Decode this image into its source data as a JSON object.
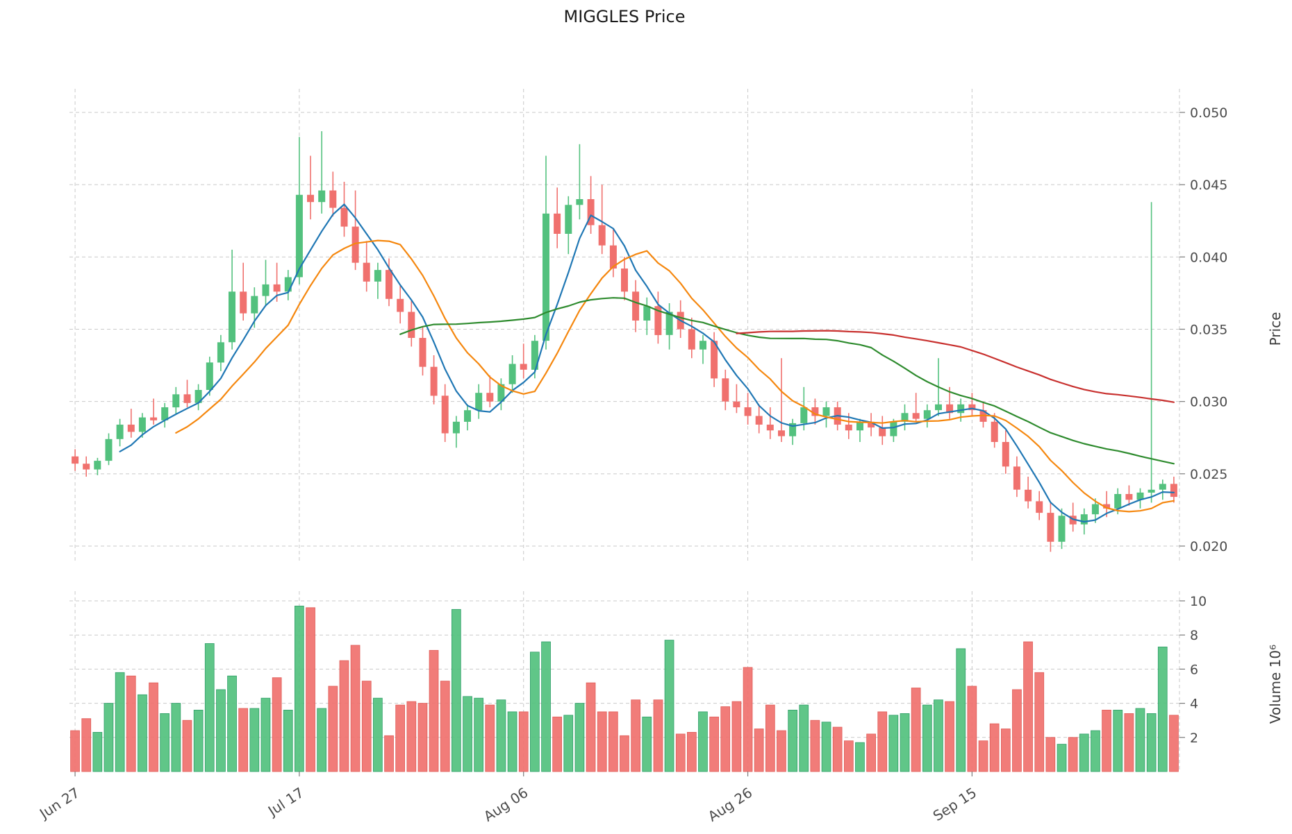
{
  "colors": {
    "up": "#53c17e",
    "down": "#f0716e",
    "up_edge": "#2e9e68",
    "down_edge": "#e05c58",
    "grid": "#c9c9c9",
    "tick_mark": "#7a7a7a",
    "tick_label": "#4b4b4b",
    "title_text": "#1a1a1a",
    "background": "#ffffff"
  },
  "chart_data": {
    "type": "candlestick",
    "title": "MIGGLES Price",
    "grid": "dashed",
    "price_axis": {
      "label": "Price",
      "side": "right",
      "ticks": [
        "0.020",
        "0.025",
        "0.030",
        "0.035",
        "0.040",
        "0.045",
        "0.050"
      ]
    },
    "volume_axis": {
      "label": "Volume",
      "scale": "10⁶",
      "label_display": "Volume  10⁶",
      "side": "right",
      "ticks": [
        "2",
        "4",
        "6",
        "8",
        "10"
      ]
    },
    "x_ticks": [
      {
        "index": 0,
        "label": "Jun 27"
      },
      {
        "index": 20,
        "label": "Jul 17"
      },
      {
        "index": 40,
        "label": "Aug 06"
      },
      {
        "index": 60,
        "label": "Aug 26"
      },
      {
        "index": 80,
        "label": "Sep 15"
      }
    ],
    "moving_averages": [
      {
        "name": "MA5",
        "window": 5,
        "color": "#1f77b4"
      },
      {
        "name": "MA10",
        "window": 10,
        "color": "#f5870e"
      },
      {
        "name": "MA30",
        "window": 30,
        "color": "#2e8b2e"
      },
      {
        "name": "MA60",
        "window": 60,
        "color": "#c8302e"
      }
    ],
    "ohlcv_columns": [
      "open",
      "high",
      "low",
      "close",
      "volume_millions"
    ],
    "ohlcv": [
      [
        0.0262,
        0.0267,
        0.0252,
        0.0257,
        2.4
      ],
      [
        0.0257,
        0.0262,
        0.0248,
        0.0253,
        3.1
      ],
      [
        0.0253,
        0.0261,
        0.0249,
        0.0259,
        2.3
      ],
      [
        0.0259,
        0.0278,
        0.0256,
        0.0274,
        4.0
      ],
      [
        0.0274,
        0.0288,
        0.0269,
        0.0284,
        5.8
      ],
      [
        0.0284,
        0.0295,
        0.0275,
        0.0279,
        5.6
      ],
      [
        0.0279,
        0.0292,
        0.0275,
        0.0289,
        4.5
      ],
      [
        0.0289,
        0.0302,
        0.0284,
        0.0287,
        5.2
      ],
      [
        0.0287,
        0.0299,
        0.0282,
        0.0296,
        3.4
      ],
      [
        0.0296,
        0.031,
        0.0291,
        0.0305,
        4.0
      ],
      [
        0.0305,
        0.0315,
        0.0296,
        0.0299,
        3.0
      ],
      [
        0.0299,
        0.0312,
        0.0294,
        0.0308,
        3.6
      ],
      [
        0.0308,
        0.0331,
        0.0304,
        0.0327,
        7.5
      ],
      [
        0.0327,
        0.0346,
        0.0321,
        0.0341,
        4.8
      ],
      [
        0.0341,
        0.0405,
        0.0336,
        0.0376,
        5.6
      ],
      [
        0.0376,
        0.0396,
        0.0356,
        0.0361,
        3.7
      ],
      [
        0.0361,
        0.0379,
        0.0351,
        0.0373,
        3.7
      ],
      [
        0.0373,
        0.0398,
        0.0366,
        0.0381,
        4.3
      ],
      [
        0.0381,
        0.0396,
        0.0369,
        0.0376,
        5.5
      ],
      [
        0.0376,
        0.0391,
        0.037,
        0.0386,
        3.6
      ],
      [
        0.0386,
        0.0483,
        0.0381,
        0.0443,
        9.7
      ],
      [
        0.0443,
        0.047,
        0.0426,
        0.0438,
        9.6
      ],
      [
        0.0438,
        0.0487,
        0.043,
        0.0446,
        3.7
      ],
      [
        0.0446,
        0.0459,
        0.0428,
        0.0434,
        5.0
      ],
      [
        0.0434,
        0.0452,
        0.0414,
        0.0421,
        6.5
      ],
      [
        0.0421,
        0.0446,
        0.0391,
        0.0396,
        7.4
      ],
      [
        0.0396,
        0.0411,
        0.0376,
        0.0383,
        5.3
      ],
      [
        0.0383,
        0.0396,
        0.0371,
        0.0391,
        4.3
      ],
      [
        0.0391,
        0.0399,
        0.0366,
        0.0371,
        2.1
      ],
      [
        0.0371,
        0.0381,
        0.0354,
        0.0362,
        3.9
      ],
      [
        0.0362,
        0.037,
        0.0338,
        0.0344,
        4.1
      ],
      [
        0.0344,
        0.0352,
        0.0318,
        0.0324,
        4.0
      ],
      [
        0.0324,
        0.0332,
        0.0298,
        0.0304,
        7.1
      ],
      [
        0.0304,
        0.0312,
        0.0272,
        0.0278,
        5.3
      ],
      [
        0.0278,
        0.029,
        0.0268,
        0.0286,
        9.5
      ],
      [
        0.0286,
        0.0298,
        0.028,
        0.0294,
        4.4
      ],
      [
        0.0294,
        0.0312,
        0.0288,
        0.0306,
        4.3
      ],
      [
        0.0306,
        0.0318,
        0.0296,
        0.03,
        3.9
      ],
      [
        0.03,
        0.0316,
        0.0294,
        0.0312,
        4.2
      ],
      [
        0.0312,
        0.0332,
        0.0306,
        0.0326,
        3.5
      ],
      [
        0.0326,
        0.034,
        0.0316,
        0.0322,
        3.5
      ],
      [
        0.0322,
        0.0346,
        0.0316,
        0.0342,
        7.0
      ],
      [
        0.0342,
        0.047,
        0.0336,
        0.043,
        7.6
      ],
      [
        0.043,
        0.0448,
        0.0406,
        0.0416,
        3.2
      ],
      [
        0.0416,
        0.0442,
        0.0402,
        0.0436,
        3.3
      ],
      [
        0.0436,
        0.0478,
        0.0426,
        0.044,
        4.0
      ],
      [
        0.044,
        0.0456,
        0.0416,
        0.0422,
        5.2
      ],
      [
        0.0422,
        0.045,
        0.0402,
        0.0408,
        3.5
      ],
      [
        0.0408,
        0.042,
        0.0386,
        0.0392,
        3.5
      ],
      [
        0.0392,
        0.04,
        0.037,
        0.0376,
        2.1
      ],
      [
        0.0376,
        0.0384,
        0.0348,
        0.0356,
        4.2
      ],
      [
        0.0356,
        0.0372,
        0.0346,
        0.0366,
        3.2
      ],
      [
        0.0366,
        0.0376,
        0.034,
        0.0346,
        4.2
      ],
      [
        0.0346,
        0.0368,
        0.0336,
        0.0362,
        7.7
      ],
      [
        0.0362,
        0.037,
        0.0344,
        0.035,
        2.2
      ],
      [
        0.035,
        0.0358,
        0.033,
        0.0336,
        2.3
      ],
      [
        0.0336,
        0.0346,
        0.0326,
        0.0342,
        3.5
      ],
      [
        0.0342,
        0.0348,
        0.031,
        0.0316,
        3.2
      ],
      [
        0.0316,
        0.0322,
        0.0294,
        0.03,
        3.8
      ],
      [
        0.03,
        0.0312,
        0.0292,
        0.0296,
        4.1
      ],
      [
        0.0296,
        0.0306,
        0.0284,
        0.029,
        6.1
      ],
      [
        0.029,
        0.0298,
        0.0278,
        0.0284,
        2.5
      ],
      [
        0.0284,
        0.0296,
        0.0274,
        0.028,
        3.9
      ],
      [
        0.028,
        0.033,
        0.0272,
        0.0276,
        2.4
      ],
      [
        0.0276,
        0.0288,
        0.027,
        0.0285,
        3.6
      ],
      [
        0.0285,
        0.031,
        0.028,
        0.0296,
        3.9
      ],
      [
        0.0296,
        0.0302,
        0.0284,
        0.029,
        3.0
      ],
      [
        0.029,
        0.03,
        0.0282,
        0.0296,
        2.9
      ],
      [
        0.0296,
        0.03,
        0.028,
        0.0284,
        2.6
      ],
      [
        0.0284,
        0.0292,
        0.0274,
        0.028,
        1.8
      ],
      [
        0.028,
        0.0288,
        0.0272,
        0.0286,
        1.7
      ],
      [
        0.0286,
        0.0292,
        0.0276,
        0.0282,
        2.2
      ],
      [
        0.0282,
        0.029,
        0.027,
        0.0276,
        3.5
      ],
      [
        0.0276,
        0.0288,
        0.0272,
        0.0286,
        3.3
      ],
      [
        0.0286,
        0.0298,
        0.028,
        0.0292,
        3.4
      ],
      [
        0.0292,
        0.0306,
        0.0286,
        0.0288,
        4.9
      ],
      [
        0.0288,
        0.0298,
        0.0282,
        0.0294,
        3.9
      ],
      [
        0.0294,
        0.033,
        0.029,
        0.0298,
        4.2
      ],
      [
        0.0298,
        0.031,
        0.0288,
        0.0292,
        4.1
      ],
      [
        0.0292,
        0.0302,
        0.0286,
        0.0298,
        7.2
      ],
      [
        0.0298,
        0.0306,
        0.029,
        0.0294,
        5.0
      ],
      [
        0.0294,
        0.03,
        0.0282,
        0.0286,
        1.8
      ],
      [
        0.0286,
        0.0292,
        0.0268,
        0.0272,
        2.8
      ],
      [
        0.0272,
        0.028,
        0.025,
        0.0255,
        2.5
      ],
      [
        0.0255,
        0.0262,
        0.0234,
        0.0239,
        4.8
      ],
      [
        0.0239,
        0.0248,
        0.0226,
        0.0231,
        7.6
      ],
      [
        0.0231,
        0.0238,
        0.0218,
        0.0223,
        5.8
      ],
      [
        0.0223,
        0.023,
        0.0196,
        0.0203,
        2.0
      ],
      [
        0.0203,
        0.0226,
        0.0198,
        0.0221,
        1.6
      ],
      [
        0.0221,
        0.023,
        0.021,
        0.0215,
        2.0
      ],
      [
        0.0215,
        0.0226,
        0.0208,
        0.0222,
        2.2
      ],
      [
        0.0222,
        0.0233,
        0.0216,
        0.0229,
        2.4
      ],
      [
        0.0229,
        0.0238,
        0.022,
        0.0226,
        3.6
      ],
      [
        0.0226,
        0.024,
        0.0222,
        0.0236,
        3.6
      ],
      [
        0.0236,
        0.0242,
        0.0228,
        0.0232,
        3.4
      ],
      [
        0.0232,
        0.024,
        0.0226,
        0.0237,
        3.7
      ],
      [
        0.0237,
        0.0438,
        0.023,
        0.0239,
        3.4
      ],
      [
        0.0239,
        0.0246,
        0.0232,
        0.0243,
        7.3
      ],
      [
        0.0243,
        0.0248,
        0.023,
        0.0234,
        3.3
      ]
    ]
  }
}
